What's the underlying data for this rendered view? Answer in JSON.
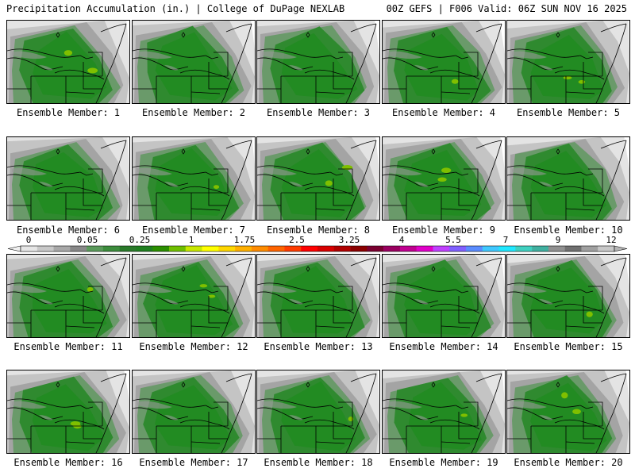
{
  "header": {
    "left": "Precipitation Accumulation (in.) | College of DuPage NEXLAB",
    "right": "00Z GEFS | F006 Valid: 06Z SUN NOV 16 2025"
  },
  "members": [
    {
      "label": "Ensemble Member: 1",
      "seed": 1
    },
    {
      "label": "Ensemble Member: 2",
      "seed": 2
    },
    {
      "label": "Ensemble Member: 3",
      "seed": 3
    },
    {
      "label": "Ensemble Member: 4",
      "seed": 4
    },
    {
      "label": "Ensemble Member: 5",
      "seed": 5
    },
    {
      "label": "Ensemble Member: 6",
      "seed": 6
    },
    {
      "label": "Ensemble Member: 7",
      "seed": 7
    },
    {
      "label": "Ensemble Member: 8",
      "seed": 8
    },
    {
      "label": "Ensemble Member: 9",
      "seed": 9
    },
    {
      "label": "Ensemble Member: 10",
      "seed": 10
    },
    {
      "label": "Ensemble Member: 11",
      "seed": 11
    },
    {
      "label": "Ensemble Member: 12",
      "seed": 12
    },
    {
      "label": "Ensemble Member: 13",
      "seed": 13
    },
    {
      "label": "Ensemble Member: 14",
      "seed": 14
    },
    {
      "label": "Ensemble Member: 15",
      "seed": 15
    },
    {
      "label": "Ensemble Member: 16",
      "seed": 16
    },
    {
      "label": "Ensemble Member: 17",
      "seed": 17
    },
    {
      "label": "Ensemble Member: 18",
      "seed": 18
    },
    {
      "label": "Ensemble Member: 19",
      "seed": 19
    },
    {
      "label": "Ensemble Member: 20",
      "seed": 20
    }
  ],
  "colorbar": {
    "labels": [
      "0",
      "0.05",
      "0.25",
      "1",
      "1.75",
      "2.5",
      "3.25",
      "4",
      "5.5",
      "7",
      "9",
      "12"
    ],
    "colors": [
      "#e6e6e6",
      "#c8c8c8",
      "#a8a8a8",
      "#888888",
      "#5a9a5a",
      "#3c8c3c",
      "#2a7a2a",
      "#1f7f1f",
      "#2b8f00",
      "#6fbf00",
      "#c8e800",
      "#ffff00",
      "#ffd700",
      "#ffb000",
      "#ff8c00",
      "#ff6400",
      "#ff3c00",
      "#ff0000",
      "#d80000",
      "#b00000",
      "#8b0000",
      "#7a0030",
      "#9a0060",
      "#c00090",
      "#e000c8",
      "#c040ff",
      "#8060ff",
      "#5a8cff",
      "#40c8ff",
      "#20e8ff",
      "#40d0c0",
      "#40b0a0",
      "#909090",
      "#707070",
      "#a0a0a0",
      "#c8c8c8"
    ]
  }
}
